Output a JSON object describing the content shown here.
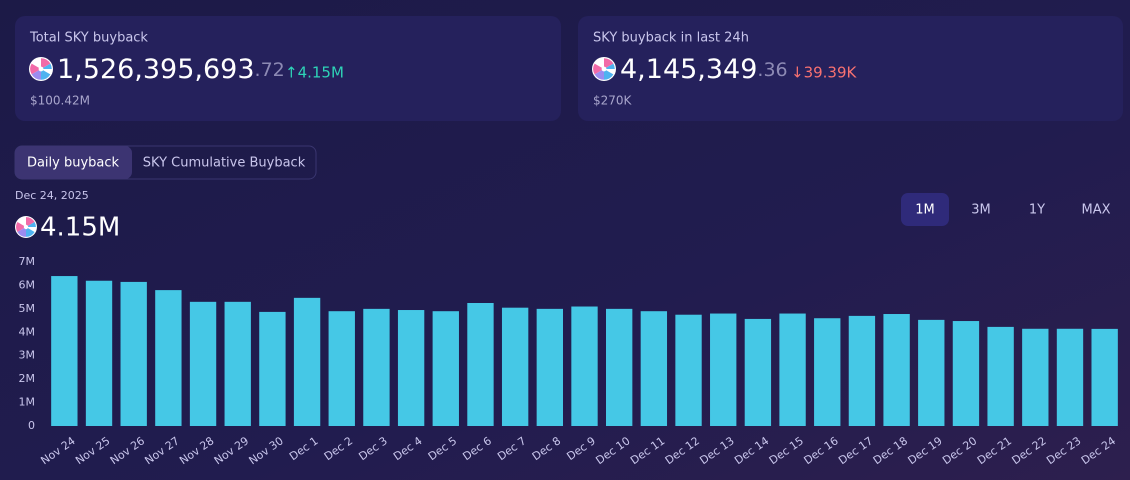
{
  "cards": [
    {
      "title": "SKY buyback",
      "title_full": "Total SKY buyback",
      "amount": "1,526,395,693",
      "decimals": ".72",
      "change": "↑4.15M",
      "usd": "$100.42M"
    },
    {
      "title_full": "SKY buyback in last 24h",
      "amount": "4,145,349",
      "decimals": ".36",
      "change": "↓39.39K",
      "usd": "$270K"
    }
  ],
  "tabs": [
    "Daily buyback",
    "SKY Cumulative Buyback"
  ],
  "selected_date": "Dec 24, 2025",
  "selected_value": "4.15M",
  "ranges": [
    "1M",
    "3M",
    "1Y",
    "MAX"
  ],
  "chart_data": {
    "type": "bar",
    "color": "#45c8e6",
    "categories": [
      "Nov 24",
      "Nov 25",
      "Nov 26",
      "Nov 27",
      "Nov 28",
      "Nov 29",
      "Nov 30",
      "Dec 1",
      "Dec 2",
      "Dec 3",
      "Dec 4",
      "Dec 5",
      "Dec 6",
      "Dec 7",
      "Dec 8",
      "Dec 9",
      "Dec 10",
      "Dec 11",
      "Dec 12",
      "Dec 13",
      "Dec 14",
      "Dec 15",
      "Dec 16",
      "Dec 17",
      "Dec 18",
      "Dec 19",
      "Dec 20",
      "Dec 21",
      "Dec 22",
      "Dec 23",
      "Dec 24"
    ],
    "values": [
      6400000,
      6200000,
      6150000,
      5800000,
      5300000,
      5300000,
      4870000,
      5470000,
      4900000,
      5000000,
      4950000,
      4900000,
      5250000,
      5050000,
      5000000,
      5100000,
      5000000,
      4900000,
      4750000,
      4800000,
      4570000,
      4800000,
      4600000,
      4700000,
      4780000,
      4530000,
      4480000,
      4230000,
      4150000,
      4150000,
      4145349
    ],
    "ylim": [
      0,
      7000000
    ],
    "yticks": [
      0,
      {
        "value": 1000000,
        "label": "1M"
      },
      {
        "value": 2000000,
        "label": "2M"
      },
      {
        "value": 3000000,
        "label": "3M"
      },
      {
        "value": 4000000,
        "label": "4M"
      },
      {
        "value": 5000000,
        "label": "5M"
      },
      {
        "value": 6000000,
        "label": "6M"
      },
      {
        "value": 7000000,
        "label": "7M"
      }
    ],
    "grid": false
  }
}
